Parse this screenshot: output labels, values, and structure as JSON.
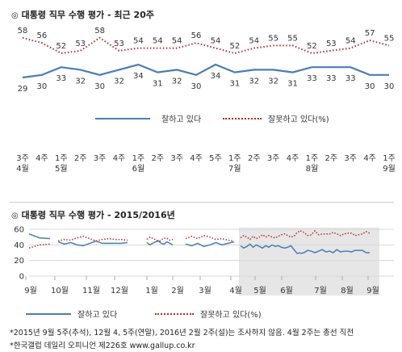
{
  "top": {
    "bullet": "◎",
    "title": "대통령 직무 수행 평가 - 최근 20주",
    "legend_positive": "잘하고 있다",
    "legend_negative": "잘못하고 있다(%)"
  },
  "bottom": {
    "bullet": "◎",
    "title": "대통령 직무 수행 평가 - 2015/2016년",
    "legend_positive": "잘하고 있다",
    "legend_negative": "잘못하고 있다(%)"
  },
  "footnote_1": "*2015년 9월 5주(추석), 12월 4, 5주(연말), 2016년 2월 2주(설)는 조사하지 않음. 4월 2주는 총선 직전",
  "footnote_2": "*한국갤럽 데일리 오피니언 제226호 www.gallup.co.kr",
  "colors": {
    "positive": "#4a7db5",
    "negative": "#b52b2b",
    "highlight": "#e6e6e6"
  },
  "chart_data": [
    {
      "type": "line",
      "title": "대통령 직무 수행 평가 - 최근 20주",
      "categories": [
        "3주\n4월",
        "4주",
        "1주\n5월",
        "2주",
        "3주",
        "4주",
        "1주\n6월",
        "2주",
        "3주",
        "4주",
        "5주",
        "1주\n7월",
        "2주",
        "3주",
        "4주",
        "1주\n8월",
        "2주",
        "3주",
        "4주",
        "1주\n9월"
      ],
      "series": [
        {
          "name": "잘하고 있다",
          "values": [
            29,
            30,
            33,
            32,
            30,
            32,
            34,
            31,
            32,
            30,
            34,
            31,
            32,
            32,
            31,
            33,
            33,
            33,
            30,
            30
          ]
        },
        {
          "name": "잘못하고 있다(%)",
          "values": [
            58,
            56,
            52,
            53,
            58,
            53,
            54,
            54,
            54,
            56,
            54,
            52,
            54,
            55,
            55,
            52,
            53,
            54,
            57,
            55
          ]
        }
      ],
      "legend_position": "bottom"
    },
    {
      "type": "line",
      "title": "대통령 직무 수행 평가 - 2015/2016년",
      "ylim": [
        0,
        60
      ],
      "yticks": [
        0,
        20,
        40,
        60
      ],
      "month_labels": [
        "9월",
        "10월",
        "11월",
        "12월",
        "1월",
        "2월",
        "3월",
        "4월",
        "5월",
        "6월",
        "7월",
        "8월",
        "9월"
      ],
      "highlight": "최근 20주",
      "series": [
        {
          "name": "잘하고 있다",
          "values": [
            54,
            49,
            48,
            null,
            null,
            44,
            41,
            43,
            40,
            39,
            42,
            45,
            42,
            42,
            42,
            42,
            43,
            null,
            null,
            null,
            null,
            null,
            null,
            null,
            null,
            null,
            null,
            null,
            null,
            null,
            null,
            null,
            null,
            null,
            null,
            null,
            null,
            null,
            null,
            null,
            null,
            null,
            null,
            null,
            null,
            null,
            null,
            null,
            null,
            null,
            null,
            null,
            null,
            null
          ]
        },
        {
          "name": "잘못하고 있다(%)",
          "values": [
            36,
            40,
            41,
            null,
            null,
            45,
            47,
            46,
            49,
            51,
            48,
            45,
            47,
            48,
            47,
            47,
            46,
            null,
            null,
            null,
            null,
            null,
            null,
            null,
            null,
            null,
            null,
            null,
            null,
            null,
            null,
            null,
            null,
            null,
            null,
            null,
            null,
            null,
            null,
            null,
            null,
            null,
            null,
            null,
            null,
            null,
            null,
            null,
            null,
            null,
            null,
            null,
            null,
            null
          ]
        }
      ],
      "segments": {
        "positive": [
          [
            54,
            49,
            48
          ],
          [
            44,
            41,
            43,
            40,
            39,
            42,
            45,
            42,
            42,
            42,
            42,
            43
          ],
          [
            43,
            40,
            42,
            44,
            45,
            42,
            41,
            44,
            42,
            40
          ],
          [
            41,
            39,
            42,
            38,
            40,
            43,
            40,
            42,
            44
          ],
          [
            39,
            36,
            38,
            41,
            37,
            40,
            38,
            36,
            39,
            37,
            40,
            38,
            39,
            37,
            36,
            37,
            39,
            34,
            29,
            30
          ],
          [
            29,
            30,
            33,
            32,
            30,
            32,
            34,
            31,
            32,
            30,
            34,
            31,
            32,
            32,
            31,
            33,
            33,
            33,
            30,
            30
          ]
        ],
        "negative": [
          [
            36,
            40,
            41
          ],
          [
            45,
            47,
            46,
            49,
            51,
            48,
            45,
            47,
            48,
            47,
            47,
            46
          ],
          [
            47,
            50,
            48,
            46,
            45,
            48,
            49,
            46,
            47
          ],
          [
            48,
            51,
            48,
            52,
            50,
            47,
            48,
            46,
            45
          ],
          [
            49,
            52,
            50,
            47,
            51,
            48,
            50,
            53,
            50,
            52,
            50,
            49,
            51,
            53,
            54,
            52,
            50,
            51,
            56,
            58
          ],
          [
            58,
            56,
            52,
            53,
            58,
            53,
            54,
            54,
            54,
            56,
            54,
            52,
            54,
            55,
            55,
            52,
            53,
            54,
            57,
            55
          ]
        ]
      },
      "legend_position": "bottom"
    }
  ]
}
